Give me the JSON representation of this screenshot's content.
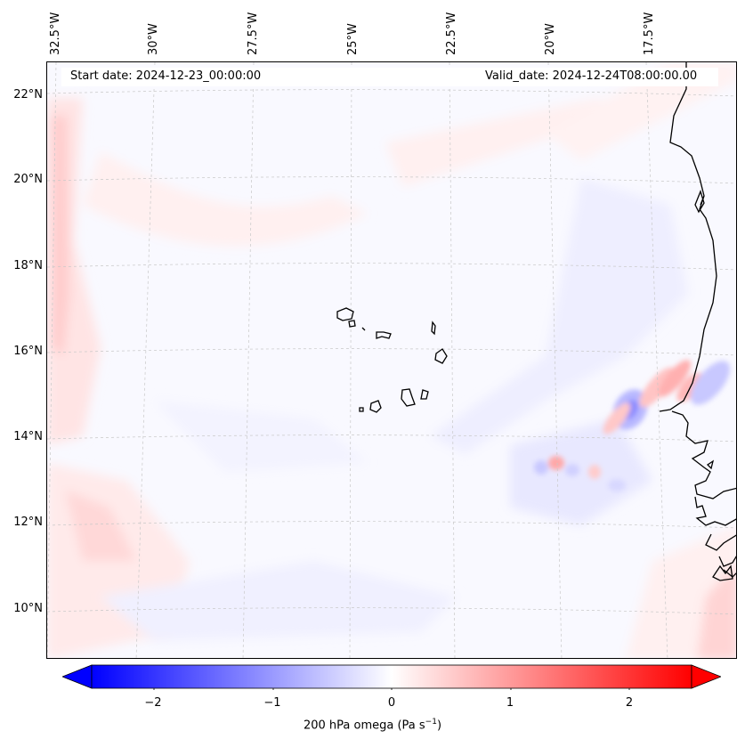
{
  "header": {
    "start_date": "Start date: 2024-12-23_00:00:00",
    "valid_date": "Valid_date: 2024-12-24T08:00:00.00"
  },
  "axes": {
    "longitude_labels": [
      "32.5°W",
      "30°W",
      "27.5°W",
      "25°W",
      "22.5°W",
      "20°W",
      "17.5°W"
    ],
    "latitude_labels": [
      "22°N",
      "20°N",
      "18°N",
      "16°N",
      "14°N",
      "12°N",
      "10°N"
    ]
  },
  "colorbar": {
    "ticks": [
      "−2",
      "−1",
      "0",
      "1",
      "2"
    ],
    "label_main": "200 hPa omega (Pa s",
    "label_sup": "−1",
    "label_end": ")",
    "min": -2.5,
    "max": 2.5,
    "cmap": "bwr"
  },
  "map": {
    "variable": "200 hPa omega",
    "units": "Pa s-1",
    "colors": {
      "negative": "#0000ff",
      "positive": "#ff0000",
      "neutral": "#ffffff",
      "coast": "#000000"
    }
  }
}
